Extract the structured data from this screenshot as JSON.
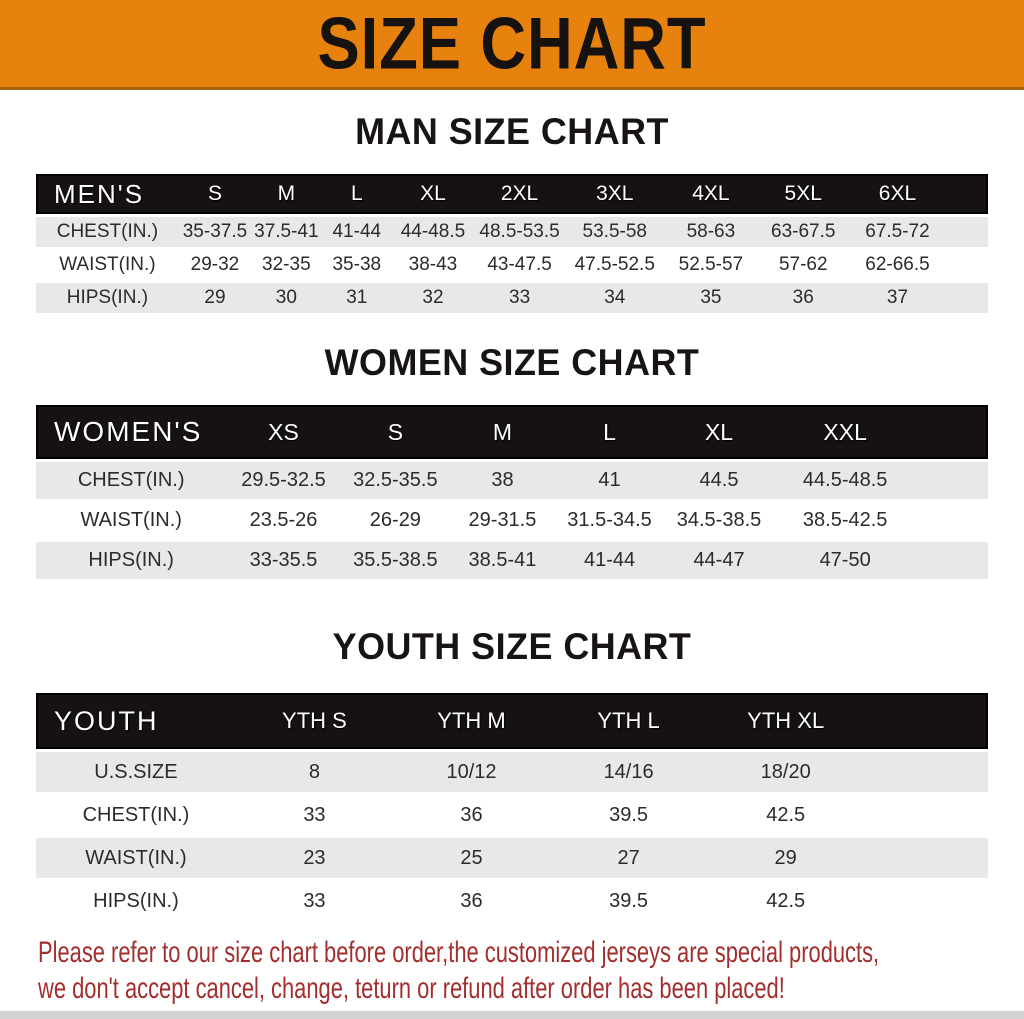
{
  "banner": {
    "title": "SIZE CHART"
  },
  "colors": {
    "banner_bg": "#e8820f",
    "table_header_bg": "#171212",
    "row_alt_bg": "#e8e8e8",
    "footer_text": "#a32e2e"
  },
  "sections": [
    {
      "heading": "MAN SIZE CHART",
      "table": {
        "label": "MEN'S",
        "columns": [
          "S",
          "M",
          "L",
          "XL",
          "2XL",
          "3XL",
          "4XL",
          "5XL",
          "6XL"
        ],
        "rows": [
          {
            "label": "CHEST(IN.)",
            "values": [
              "35-37.5",
              "37.5-41",
              "41-44",
              "44-48.5",
              "48.5-53.5",
              "53.5-58",
              "58-63",
              "63-67.5",
              "67.5-72"
            ]
          },
          {
            "label": "WAIST(IN.)",
            "values": [
              "29-32",
              "32-35",
              "35-38",
              "38-43",
              "43-47.5",
              "47.5-52.5",
              "52.5-57",
              "57-62",
              "62-66.5"
            ]
          },
          {
            "label": "HIPS(IN.)",
            "values": [
              "29",
              "30",
              "31",
              "32",
              "33",
              "34",
              "35",
              "36",
              "37"
            ]
          }
        ]
      }
    },
    {
      "heading": "WOMEN SIZE CHART",
      "table": {
        "label": "WOMEN'S",
        "columns": [
          "XS",
          "S",
          "M",
          "L",
          "XL",
          "XXL"
        ],
        "rows": [
          {
            "label": "CHEST(IN.)",
            "values": [
              "29.5-32.5",
              "32.5-35.5",
              "38",
              "41",
              "44.5",
              "44.5-48.5"
            ]
          },
          {
            "label": "WAIST(IN.)",
            "values": [
              "23.5-26",
              "26-29",
              "29-31.5",
              "31.5-34.5",
              "34.5-38.5",
              "38.5-42.5"
            ]
          },
          {
            "label": "HIPS(IN.)",
            "values": [
              "33-35.5",
              "35.5-38.5",
              "38.5-41",
              "41-44",
              "44-47",
              "47-50"
            ]
          }
        ]
      }
    },
    {
      "heading": "YOUTH SIZE CHART",
      "table": {
        "label": "YOUTH",
        "columns": [
          "YTH S",
          "YTH M",
          "YTH L",
          "YTH XL"
        ],
        "rows": [
          {
            "label": "U.S.SIZE",
            "values": [
              "8",
              "10/12",
              "14/16",
              "18/20"
            ]
          },
          {
            "label": "CHEST(IN.)",
            "values": [
              "33",
              "36",
              "39.5",
              "42.5"
            ]
          },
          {
            "label": "WAIST(IN.)",
            "values": [
              "23",
              "25",
              "27",
              "29"
            ]
          },
          {
            "label": "HIPS(IN.)",
            "values": [
              "33",
              "36",
              "39.5",
              "42.5"
            ]
          }
        ]
      }
    }
  ],
  "footer": {
    "line1": "Please refer to our size chart before order,the customized jerseys are special products,",
    "line2": "we don't accept cancel, change, teturn or refund after order has been placed!"
  }
}
